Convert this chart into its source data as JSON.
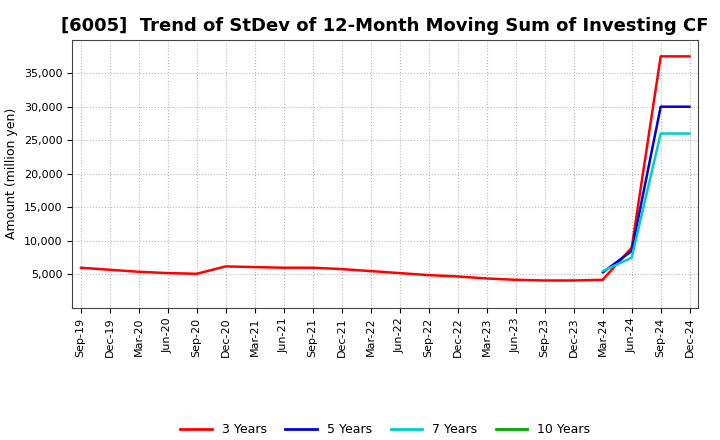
{
  "title": "[6005]  Trend of StDev of 12-Month Moving Sum of Investing CF",
  "ylabel": "Amount (million yen)",
  "background_color": "#ffffff",
  "plot_background": "#ffffff",
  "grid_color": "#999999",
  "series": {
    "3 Years": {
      "color": "#ff0000",
      "values": [
        6000,
        5700,
        5400,
        5200,
        5100,
        6200,
        6100,
        6000,
        6000,
        5800,
        5500,
        5200,
        4900,
        4700,
        4400,
        4200,
        4100,
        4100,
        4200,
        9000,
        37500,
        37500
      ]
    },
    "5 Years": {
      "color": "#0000dd",
      "values": [
        null,
        null,
        null,
        null,
        null,
        null,
        null,
        null,
        null,
        null,
        null,
        null,
        null,
        null,
        null,
        null,
        null,
        null,
        5300,
        8500,
        30000,
        30000
      ]
    },
    "7 Years": {
      "color": "#00cccc",
      "values": [
        null,
        null,
        null,
        null,
        null,
        null,
        null,
        null,
        null,
        null,
        null,
        null,
        null,
        null,
        null,
        null,
        null,
        null,
        5500,
        7500,
        26000,
        26000
      ]
    },
    "10 Years": {
      "color": "#00aa00",
      "values": [
        null,
        null,
        null,
        null,
        null,
        null,
        null,
        null,
        null,
        null,
        null,
        null,
        null,
        null,
        null,
        null,
        null,
        null,
        null,
        null,
        null,
        null
      ]
    }
  },
  "xtick_labels": [
    "Sep-19",
    "Dec-19",
    "Mar-20",
    "Jun-20",
    "Sep-20",
    "Dec-20",
    "Mar-21",
    "Jun-21",
    "Sep-21",
    "Dec-21",
    "Mar-22",
    "Jun-22",
    "Sep-22",
    "Dec-22",
    "Mar-23",
    "Jun-23",
    "Sep-23",
    "Dec-23",
    "Mar-24",
    "Jun-24",
    "Sep-24",
    "Dec-24"
  ],
  "ylim_min": 0,
  "ylim_max": 40000,
  "yticks": [
    5000,
    10000,
    15000,
    20000,
    25000,
    30000,
    35000
  ],
  "legend_labels": [
    "3 Years",
    "5 Years",
    "7 Years",
    "10 Years"
  ],
  "legend_colors": [
    "#ff0000",
    "#0000dd",
    "#00cccc",
    "#00aa00"
  ],
  "title_fontsize": 13,
  "tick_fontsize": 8,
  "ylabel_fontsize": 9
}
